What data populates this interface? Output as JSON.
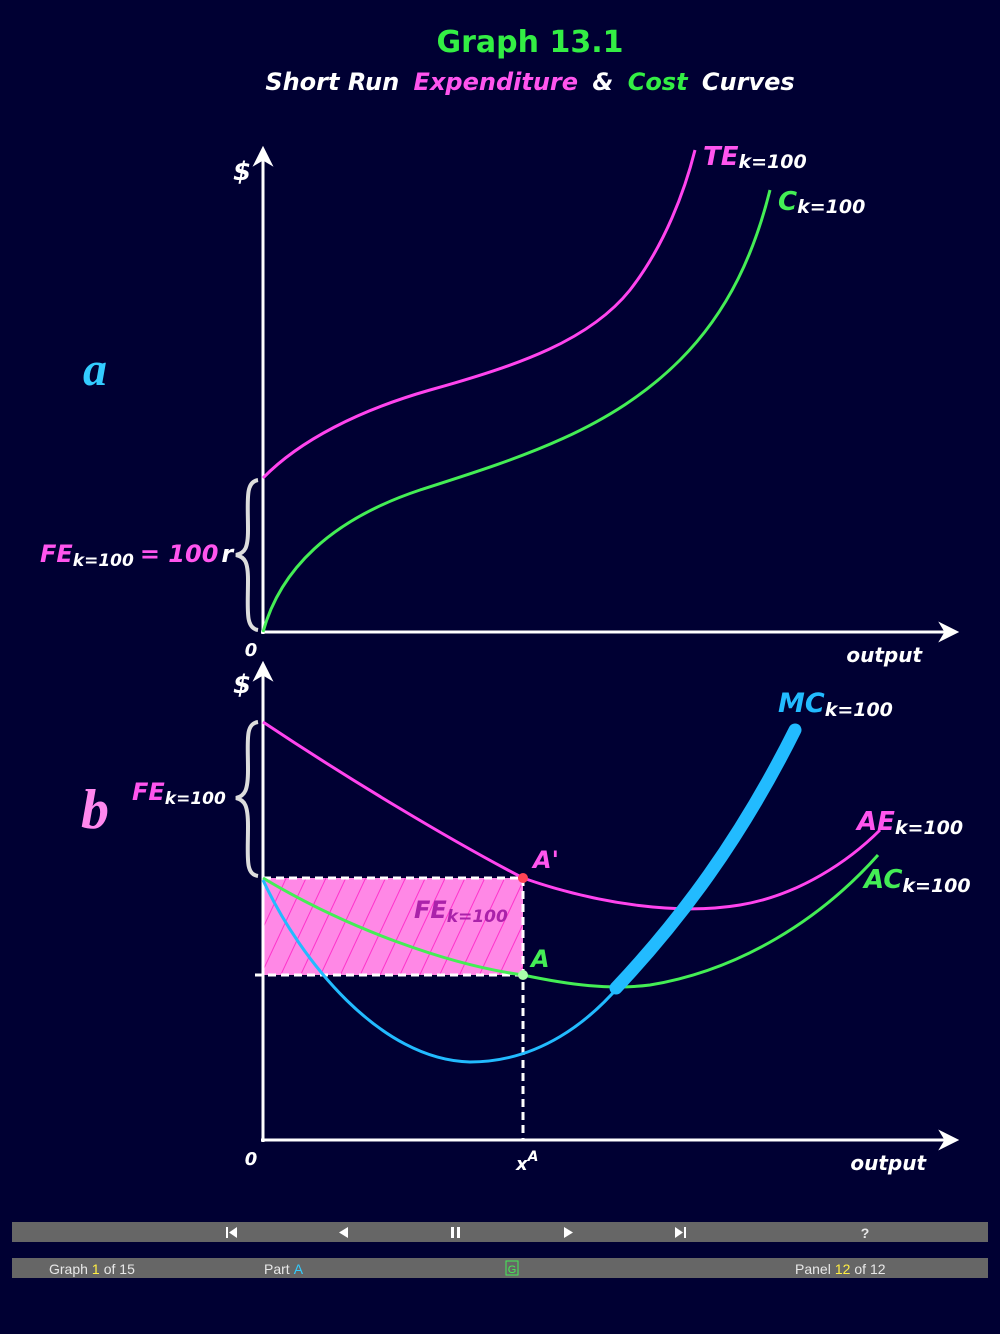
{
  "title": "Graph 13.1",
  "subtitle": [
    "Short Run",
    "Expenditure",
    "&",
    "Cost",
    "Curves"
  ],
  "panels": [
    {
      "label": "a",
      "y_axis": "$",
      "origin": "0",
      "x_axis": "output",
      "curves": [
        {
          "name": "TE",
          "subscript": "k=100"
        },
        {
          "name": "C",
          "subscript": "k=100"
        }
      ],
      "brace_label": {
        "name": "FE",
        "subscript": "k=100",
        "equals": "= 100",
        "unit": "r"
      }
    },
    {
      "label": "b",
      "y_axis": "$",
      "origin": "0",
      "x_axis": "output",
      "curves": [
        {
          "name": "MC",
          "subscript": "k=100"
        },
        {
          "name": "AE",
          "subscript": "k=100"
        },
        {
          "name": "AC",
          "subscript": "k=100"
        }
      ],
      "brace_label": {
        "name": "FE",
        "subscript": "k=100"
      },
      "area_label": {
        "name": "FE",
        "subscript": "k=100"
      },
      "points": [
        "A'",
        "A"
      ],
      "x_mark": {
        "name": "x",
        "superscript": "A"
      }
    }
  ],
  "nav": {
    "help": "?"
  },
  "status": {
    "graph": [
      "Graph",
      "1",
      "of 15"
    ],
    "part": [
      "Part",
      "A"
    ],
    "toggle": "G",
    "panel": [
      "Panel",
      "12",
      "of 12"
    ]
  }
}
